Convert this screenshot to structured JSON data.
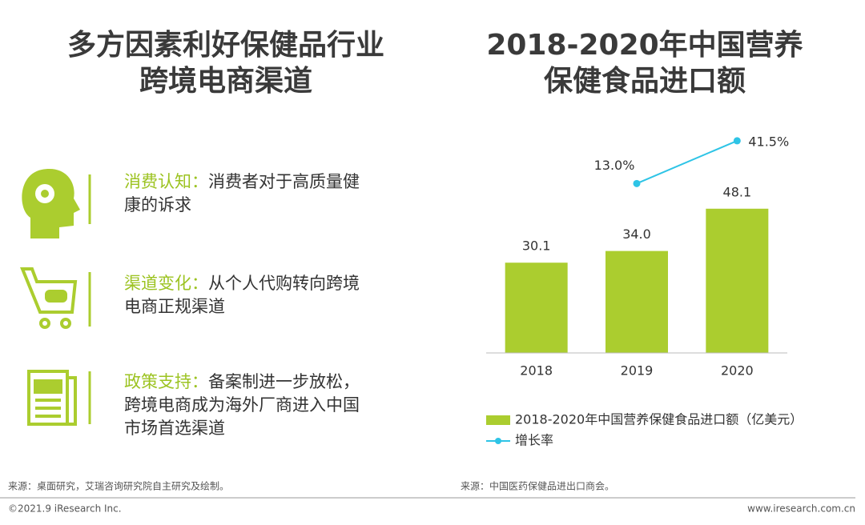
{
  "left": {
    "title": [
      "多方因素利好保健品行业",
      "跨境电商渠道"
    ],
    "items": [
      {
        "label": "消费认知：",
        "text": [
          "消费者对于高质量健",
          "康的诉求"
        ]
      },
      {
        "label": "渠道变化：",
        "text": [
          "从个人代购转向跨境",
          "电商正规渠道"
        ]
      },
      {
        "label": "政策支持：",
        "text": [
          "备案制进一步放松，",
          "跨境电商成为海外厂商进入中国",
          "市场首选渠道"
        ]
      }
    ],
    "source": "来源：桌面研究，艾瑞咨询研究院自主研究及绘制。"
  },
  "chart_data": {
    "type": "bar",
    "title": [
      "2018-2020年中国营养",
      "保健食品进口额"
    ],
    "categories": [
      "2018",
      "2019",
      "2020"
    ],
    "series": [
      {
        "name": "2018-2020年中国营养保健食品进口额（亿美元）",
        "type": "bar",
        "color": "#abcd2f",
        "values": [
          30.1,
          34.0,
          48.1
        ],
        "value_labels": [
          "30.1",
          "34.0",
          "48.1"
        ]
      },
      {
        "name": "增长率",
        "type": "line",
        "axis": "y2",
        "color": "#2ec4e6",
        "values": [
          null,
          13.0,
          41.5
        ],
        "value_labels": [
          null,
          "13.0%",
          "41.5%"
        ]
      }
    ],
    "ylim": [
      0,
      75
    ],
    "y2lim": [
      -100,
      50
    ],
    "source": "来源：中国医药保健品进出口商会。"
  },
  "footer": {
    "copyright": "©2021.9 iResearch Inc.",
    "url": "www.iresearch.com.cn"
  }
}
